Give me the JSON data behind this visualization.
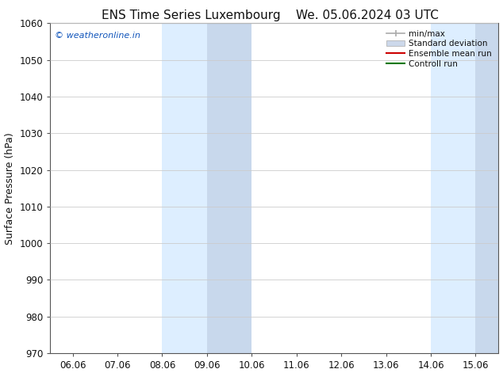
{
  "title_left": "ENS Time Series Luxembourg",
  "title_right": "We. 05.06.2024 03 UTC",
  "ylabel": "Surface Pressure (hPa)",
  "ylim": [
    970,
    1060
  ],
  "yticks": [
    970,
    980,
    990,
    1000,
    1010,
    1020,
    1030,
    1040,
    1050,
    1060
  ],
  "xtick_labels": [
    "06.06",
    "07.06",
    "08.06",
    "09.06",
    "10.06",
    "11.06",
    "12.06",
    "13.06",
    "14.06",
    "15.06"
  ],
  "n_ticks": 10,
  "shaded_outer": [
    {
      "xmin": 2.0,
      "xmax": 3.0,
      "color": "#ddeeff"
    },
    {
      "xmin": 2.5,
      "xmax": 3.0,
      "color": "#ccddef"
    },
    {
      "xmin": 9.0,
      "xmax": 10.0,
      "color": "#ddeeff"
    },
    {
      "xmin": 9.3,
      "xmax": 9.8,
      "color": "#ccddef"
    }
  ],
  "shaded_bands": [
    {
      "xmin": 2.0,
      "xmax": 2.45,
      "color": "#ddeeff"
    },
    {
      "xmin": 2.45,
      "xmax": 3.0,
      "color": "#ccd8ea"
    },
    {
      "xmin": 9.0,
      "xmax": 9.25,
      "color": "#ddeeff"
    },
    {
      "xmin": 9.25,
      "xmax": 9.75,
      "color": "#ccd8ea"
    },
    {
      "xmin": 9.75,
      "xmax": 10.0,
      "color": "#ddeeff"
    }
  ],
  "watermark_text": "© weatheronline.in",
  "watermark_color": "#1155bb",
  "legend_items": [
    {
      "label": "min/max"
    },
    {
      "label": "Standard deviation"
    },
    {
      "label": "Ensemble mean run"
    },
    {
      "label": "Controll run"
    }
  ],
  "legend_line_color": "#aaaaaa",
  "legend_band_color": "#ccd8ea",
  "legend_red": "#cc0000",
  "legend_green": "#007700",
  "background_color": "#ffffff",
  "spine_color": "#555555",
  "tick_color": "#555555",
  "font_color": "#111111",
  "title_fontsize": 11,
  "axis_fontsize": 8.5,
  "ylabel_fontsize": 9,
  "watermark_fontsize": 8,
  "legend_fontsize": 7.5
}
